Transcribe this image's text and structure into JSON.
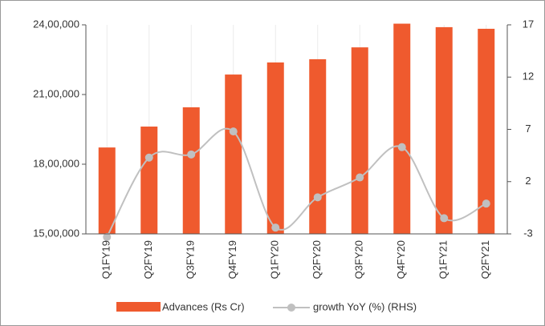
{
  "chart_data": {
    "type": "bar-line",
    "categories": [
      "Q1FY19",
      "Q2FY19",
      "Q3FY19",
      "Q4FY19",
      "Q1FY20",
      "Q2FY20",
      "Q3FY20",
      "Q4FY20",
      "Q1FY21",
      "Q2FY21"
    ],
    "series": [
      {
        "name": "Advances (Rs Cr)",
        "color": "#ef5a2e",
        "type": "bar",
        "axis": "y",
        "values": [
          1872000,
          1962000,
          2045000,
          2186000,
          2238000,
          2252000,
          2303000,
          2405000,
          2390000,
          2383000
        ]
      },
      {
        "name": "growth YoY  (%) (RHS)",
        "color": "#c0c0c0",
        "type": "line",
        "axis": "y2",
        "values": [
          -3.3,
          4.3,
          4.6,
          6.8,
          -2.4,
          0.5,
          2.4,
          5.3,
          -1.5,
          -0.1
        ]
      }
    ],
    "ylim": [
      1500000,
      2400000
    ],
    "yticks": [
      {
        "value": 1500000,
        "label": "15,00,000"
      },
      {
        "value": 1800000,
        "label": "18,00,000"
      },
      {
        "value": 2100000,
        "label": "21,00,000"
      },
      {
        "value": 2400000,
        "label": "24,00,000"
      }
    ],
    "y2lim": [
      -3,
      17
    ],
    "y2ticks": [
      -3,
      2,
      7,
      12,
      17
    ],
    "grid": true,
    "legend": "bottom"
  }
}
